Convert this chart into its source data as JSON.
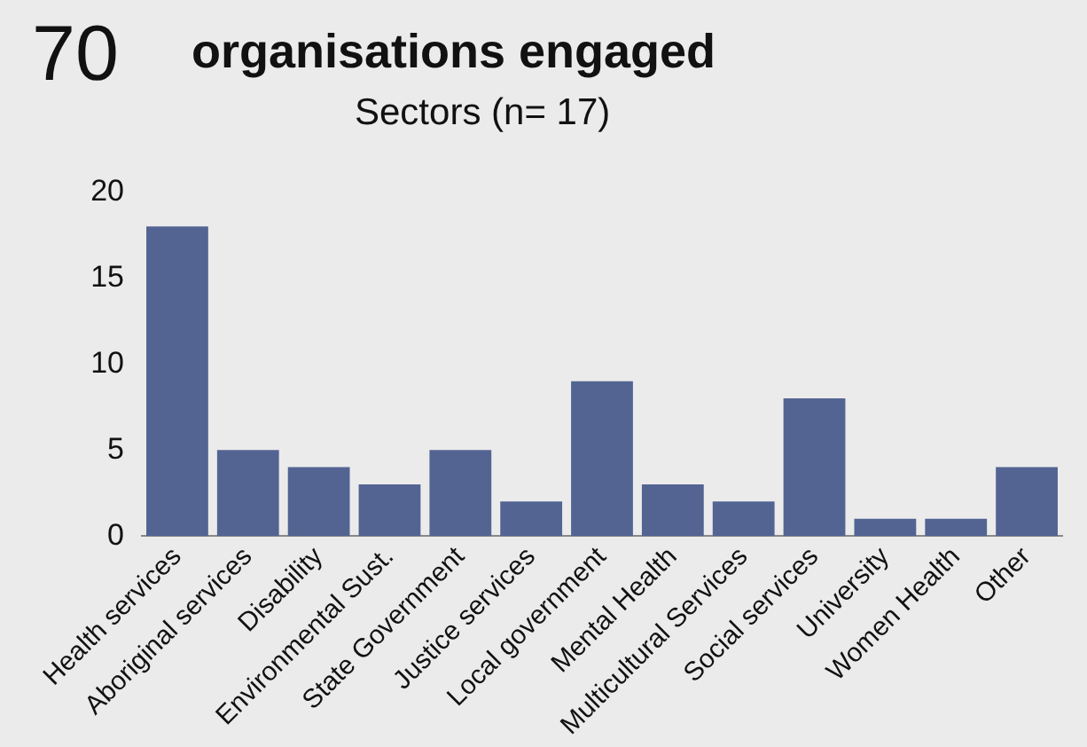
{
  "chart_data": {
    "type": "bar",
    "title": "70",
    "subtitle": "organisations engaged",
    "annotations": [
      "Sectors (n= 17)"
    ],
    "categories": [
      "Health services",
      "Aboriginal services",
      "Disability",
      "Environmental Sust.",
      "State Government",
      "Justice services",
      "Local government",
      "Mental Health",
      "Multicultural Services",
      "Social services",
      "University",
      "Women Health",
      "Other"
    ],
    "values": [
      18,
      5,
      4,
      3,
      5,
      2,
      9,
      3,
      2,
      8,
      1,
      1,
      4
    ],
    "color": "#536493",
    "ylim": [
      0,
      20
    ],
    "yticks": [
      0,
      5,
      10,
      15,
      20
    ],
    "grid": false,
    "legend": false
  }
}
